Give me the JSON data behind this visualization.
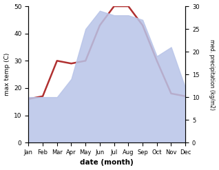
{
  "months": [
    "Jan",
    "Feb",
    "Mar",
    "Apr",
    "May",
    "Jun",
    "Jul",
    "Aug",
    "Sep",
    "Oct",
    "Nov",
    "Dec"
  ],
  "temp": [
    16,
    17,
    30,
    29,
    30,
    43,
    50,
    50,
    43,
    30,
    18,
    17
  ],
  "precip": [
    10,
    10,
    10,
    14,
    25,
    29,
    28,
    28,
    27,
    19,
    21,
    12
  ],
  "temp_color": "#b03030",
  "precip_fill_color": "#b8c4e8",
  "xlabel": "date (month)",
  "ylabel_left": "max temp (C)",
  "ylabel_right": "med. precipitation (kg/m2)",
  "ylim_left": [
    0,
    50
  ],
  "ylim_right": [
    0,
    30
  ],
  "yticks_left": [
    0,
    10,
    20,
    30,
    40,
    50
  ],
  "yticks_right": [
    0,
    5,
    10,
    15,
    20,
    25,
    30
  ],
  "bg_color": "#ffffff"
}
